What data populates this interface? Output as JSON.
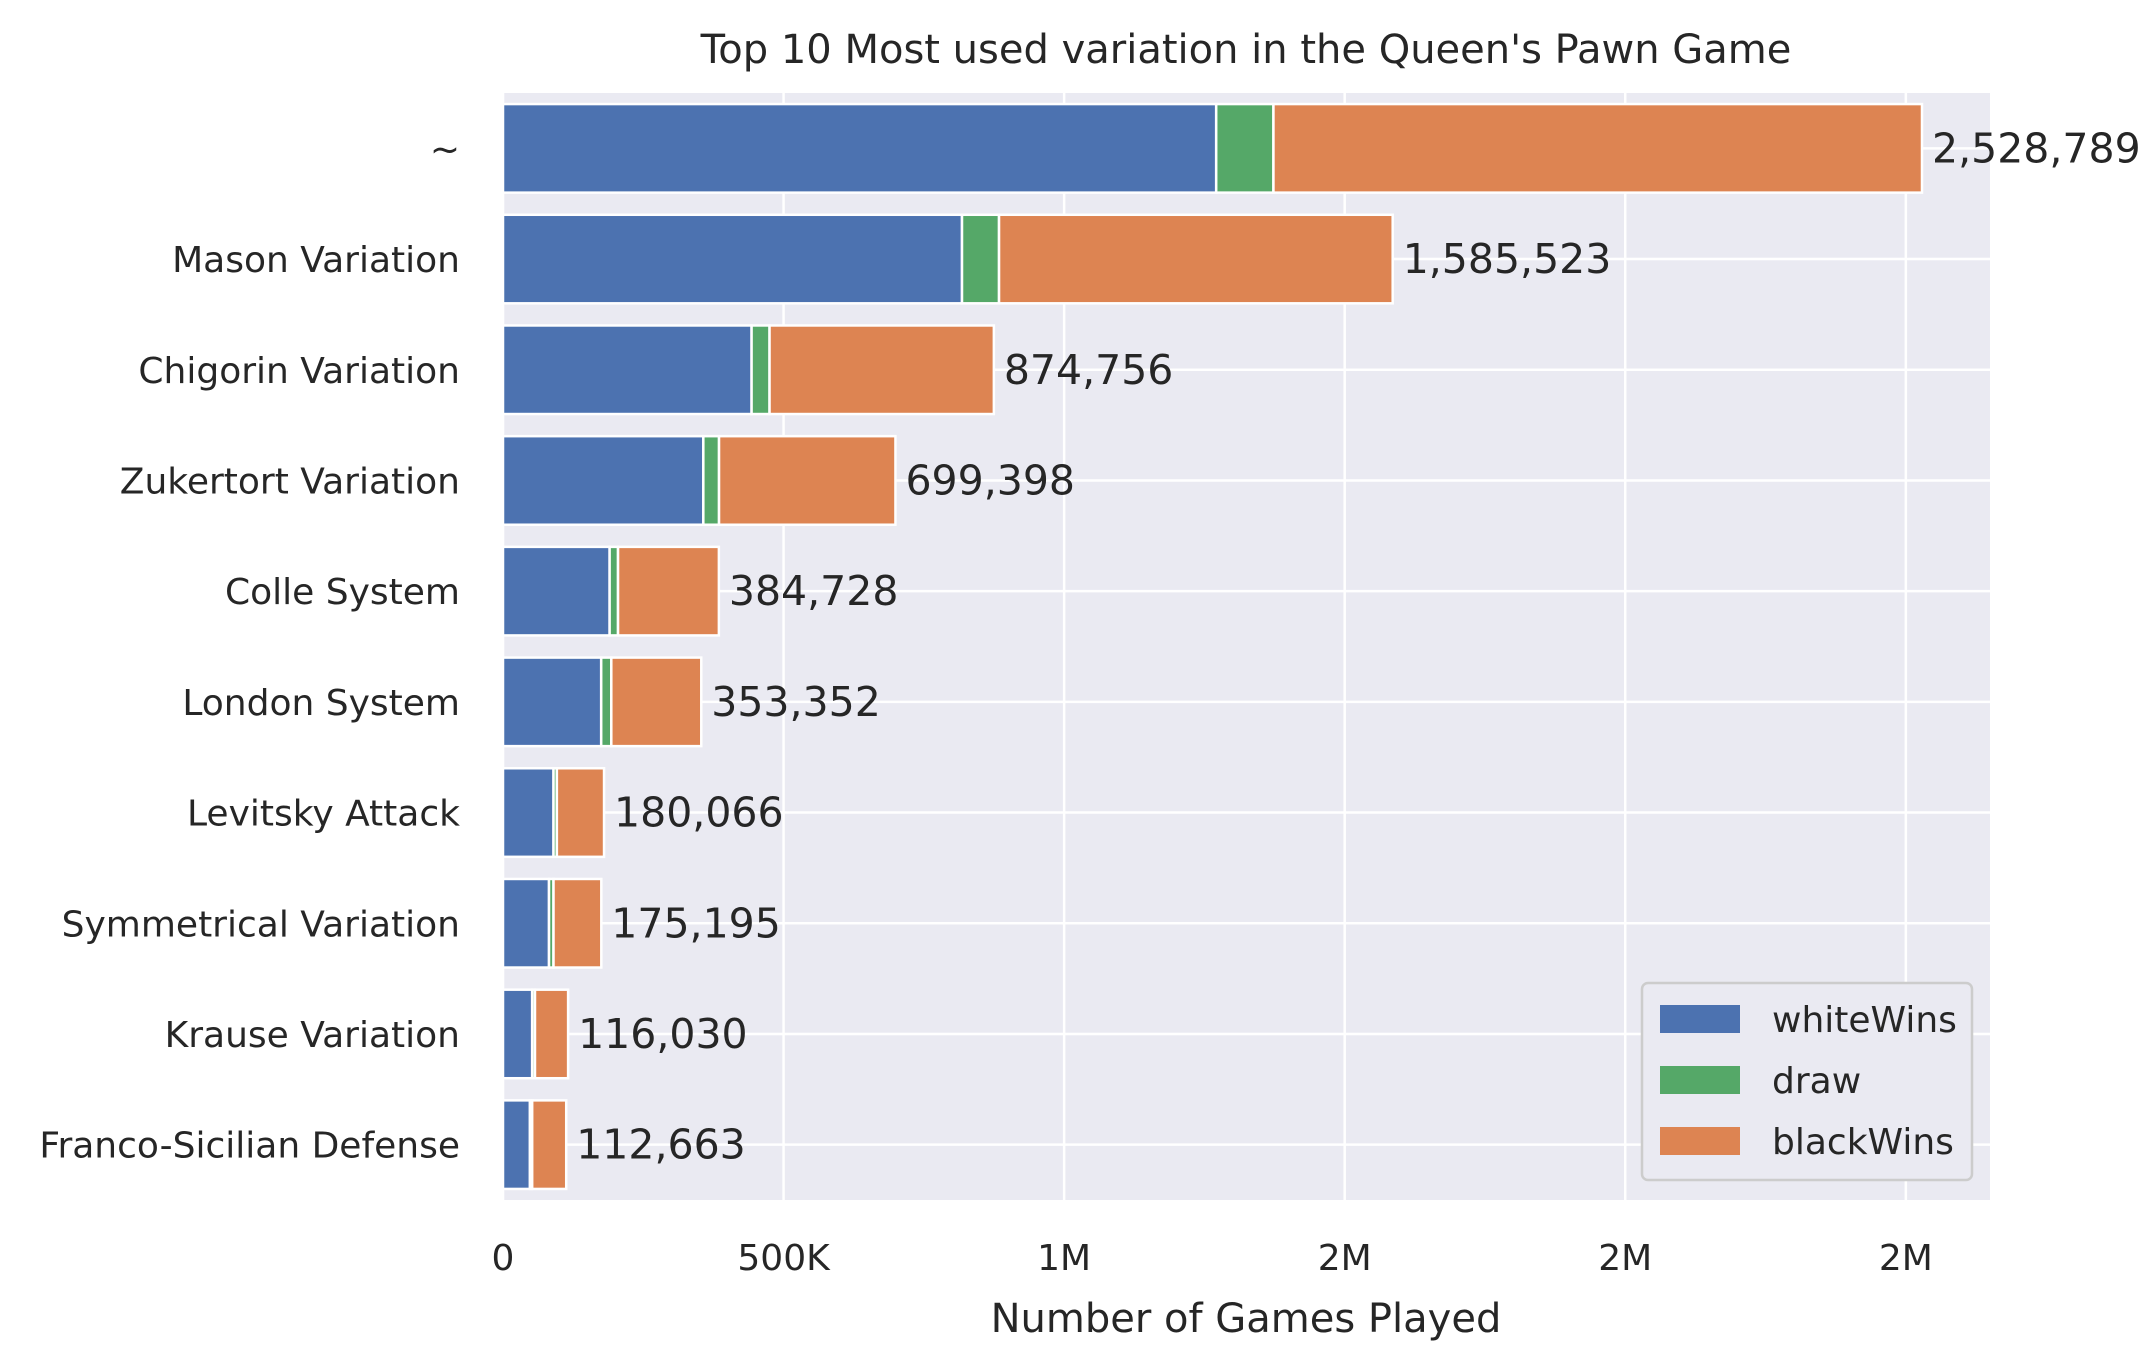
{
  "chart_data": {
    "type": "bar",
    "orientation": "horizontal",
    "stacked": true,
    "title": "Top 10 Most used variation in the Queen's Pawn Game",
    "xlabel": "Number of Games Played",
    "ylabel": "",
    "categories": [
      "~",
      "Mason Variation",
      "Chigorin Variation",
      "Zukertort Variation",
      "Colle System",
      "London System",
      "Levitsky Attack",
      "Symmetrical Variation",
      "Krause Variation",
      "Franco-Sicilian Defense"
    ],
    "series": [
      {
        "name": "whiteWins",
        "color": "#4c72b0",
        "values": [
          1271000,
          818000,
          443000,
          357000,
          190000,
          175000,
          90000,
          82000,
          52000,
          48000
        ]
      },
      {
        "name": "draw",
        "color": "#55a868",
        "values": [
          102000,
          66000,
          32000,
          28000,
          15000,
          18000,
          6000,
          8000,
          5000,
          4000
        ]
      },
      {
        "name": "blackWins",
        "color": "#dd8452",
        "values": [
          1155789,
          701523,
          399756,
          314398,
          179728,
          160352,
          84066,
          85195,
          59030,
          60663
        ]
      }
    ],
    "totals": [
      2528789,
      1585523,
      874756,
      699398,
      384728,
      353352,
      180066,
      175195,
      116030,
      112663
    ],
    "total_labels": [
      "2,528,789",
      "1,585,523",
      "874,756",
      "699,398",
      "384,728",
      "353,352",
      "180,066",
      "175,195",
      "116,030",
      "112,663"
    ],
    "xticks": [
      0,
      500000,
      1000000,
      1500000,
      2000000,
      2500000
    ],
    "xtick_labels": [
      "0",
      "500K",
      "1M",
      "2M",
      "2M",
      "2M"
    ],
    "xlim": [
      0,
      2650000
    ],
    "grid": true,
    "legend_position": "bottom-right",
    "background": "#eaeaf2"
  }
}
